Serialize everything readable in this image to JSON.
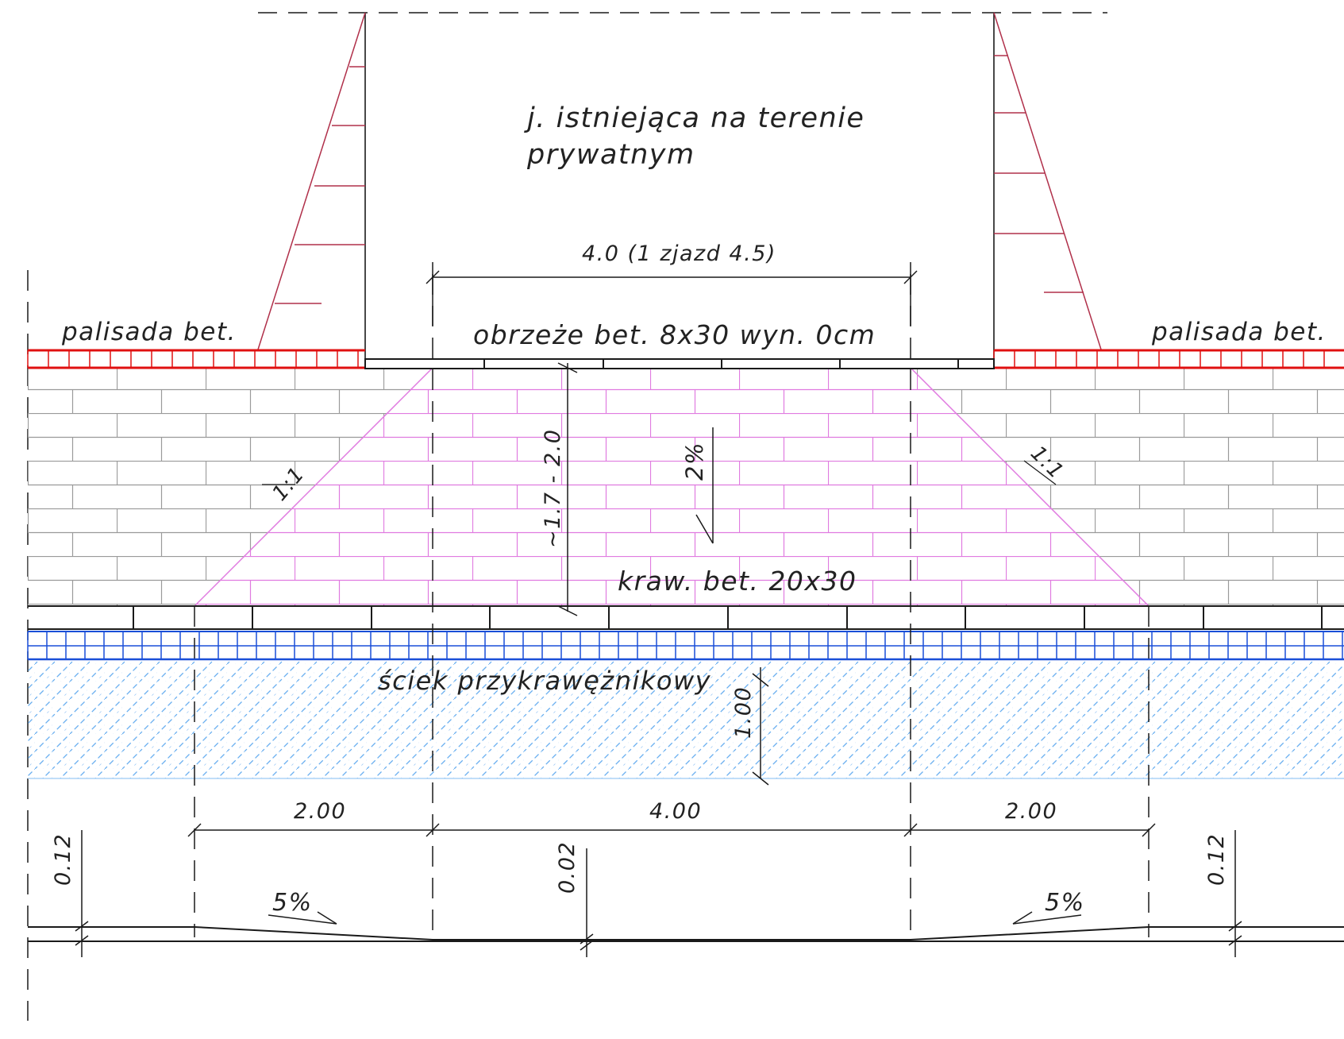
{
  "labels": {
    "private_road_line1": "j. istniejąca na terenie",
    "private_road_line2": "prywatnym",
    "entrance_width": "4.0 (1 zjazd 4.5)",
    "border_curb": "obrzeże bet. 8x30 wyn. 0cm",
    "palisade_left": "palisada bet.",
    "palisade_right": "palisada bet.",
    "slope_left": "1:1",
    "slope_right": "1:1",
    "pavement_depth": "~1.7 - 2.0",
    "pavement_slope": "2%",
    "road_curb": "kraw. bet. 20x30",
    "gutter": "ściek przykrawężnikowy",
    "gutter_width": "1.00",
    "dim_left": "2.00",
    "dim_center": "4.00",
    "dim_right": "2.00",
    "height_left": "0.12",
    "height_center": "0.02",
    "height_right": "0.12",
    "grade_left": "5%",
    "grade_right": "5%"
  },
  "colors": {
    "outline": "#1a1a1a",
    "paving_grey": "#9a9a9a",
    "paving_pink": "#e07be0",
    "palisade_red": "#e01010",
    "embankment": "#b0304a",
    "gutter_blue": "#1a4fd8",
    "hatch_blue": "#6aaff0"
  }
}
